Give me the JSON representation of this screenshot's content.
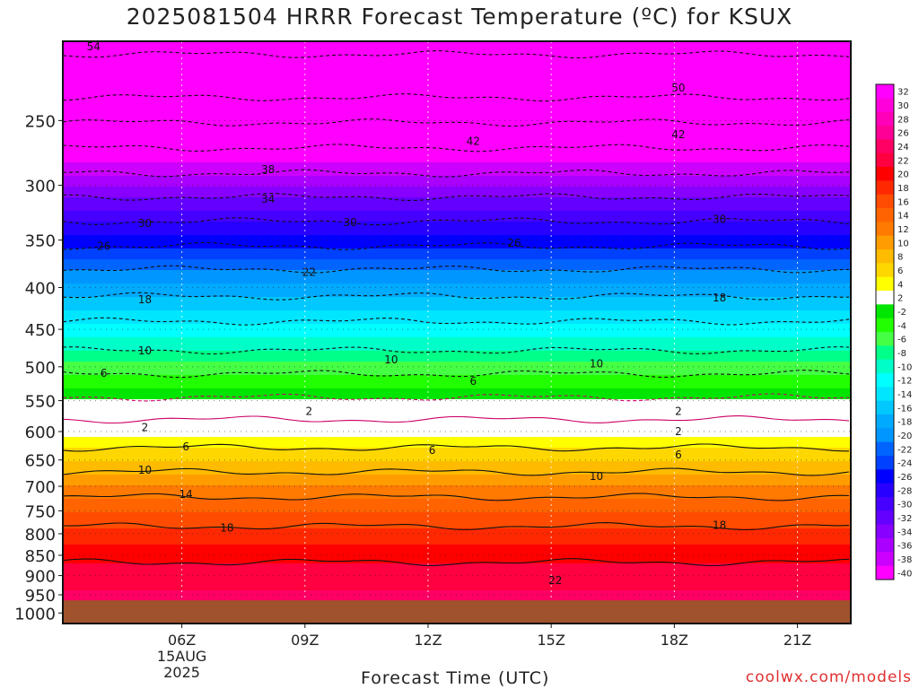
{
  "title": "2025081504 HRRR Forecast Temperature (ºC) for KSUX",
  "credit": "coolwx.com/models",
  "chart_data": {
    "type": "heatmap",
    "title": "2025081504 HRRR Forecast Temperature (ºC) for KSUX",
    "xlabel": "Forecast Time (UTC)",
    "ylabel": "",
    "x_ticks": [
      "06Z",
      "09Z",
      "12Z",
      "15Z",
      "18Z",
      "21Z"
    ],
    "x_tick_date": [
      "15AUG",
      "2025"
    ],
    "x_tick_hours": [
      6,
      9,
      12,
      15,
      18,
      21
    ],
    "xlim": [
      3.1,
      22.3
    ],
    "y_ticks": [
      250,
      300,
      350,
      400,
      450,
      500,
      550,
      600,
      650,
      700,
      750,
      800,
      850,
      900,
      950,
      1000
    ],
    "ylim": [
      1030,
      200
    ],
    "y_scale": "log",
    "colorbar": {
      "labels": [
        "32",
        "30",
        "28",
        "26",
        "24",
        "22",
        "20",
        "18",
        "16",
        "14",
        "12",
        "10",
        "8",
        "6",
        "4",
        "2",
        "-2",
        "-4",
        "-6",
        "-8",
        "-10",
        "-12",
        "-14",
        "-16",
        "-18",
        "-20",
        "-22",
        "-24",
        "-26",
        "-28",
        "-30",
        "-32",
        "-34",
        "-36",
        "-38",
        "-40"
      ],
      "colors": [
        "#ff00ff",
        "#ff00dd",
        "#ff00b9",
        "#ff0097",
        "#ff0064",
        "#ff0040",
        "#ff0000",
        "#ff2800",
        "#ff4c00",
        "#ff6400",
        "#ff7a00",
        "#ff9c00",
        "#ffbb00",
        "#ffd700",
        "#ffff00",
        "#ffffff",
        "#00e600",
        "#22ff00",
        "#44ff44",
        "#00ff88",
        "#00ffc8",
        "#00ffff",
        "#00e6ff",
        "#00c8ff",
        "#00aaff",
        "#0096ff",
        "#0064ff",
        "#0040ff",
        "#0000ff",
        "#2800ff",
        "#4600ff",
        "#6400ff",
        "#8800ff",
        "#aa00ff",
        "#cc00ff",
        "#ff00ff"
      ]
    },
    "ground_pressure_hpa": 965,
    "contour_labels": [
      {
        "text": "54",
        "t": 3.85,
        "p": 203
      },
      {
        "text": "50",
        "t": 18.1,
        "p": 228
      },
      {
        "text": "42",
        "t": 13.1,
        "p": 265
      },
      {
        "text": "42",
        "t": 18.1,
        "p": 260
      },
      {
        "text": "38",
        "t": 8.1,
        "p": 287
      },
      {
        "text": "34",
        "t": 8.1,
        "p": 312
      },
      {
        "text": "30",
        "t": 5.1,
        "p": 334
      },
      {
        "text": "30",
        "t": 10.1,
        "p": 333
      },
      {
        "text": "30",
        "t": 19.1,
        "p": 330
      },
      {
        "text": "26",
        "t": 4.1,
        "p": 356
      },
      {
        "text": "26",
        "t": 14.1,
        "p": 353
      },
      {
        "text": "22",
        "t": 9.1,
        "p": 383
      },
      {
        "text": "18",
        "t": 5.1,
        "p": 414
      },
      {
        "text": "18",
        "t": 19.1,
        "p": 412
      },
      {
        "text": "10",
        "t": 5.1,
        "p": 478
      },
      {
        "text": "10",
        "t": 11.1,
        "p": 490
      },
      {
        "text": "10",
        "t": 16.1,
        "p": 496
      },
      {
        "text": "6",
        "t": 4.1,
        "p": 509
      },
      {
        "text": "6",
        "t": 13.1,
        "p": 521
      },
      {
        "text": "2",
        "t": 9.1,
        "p": 567
      },
      {
        "text": "2",
        "t": 18.1,
        "p": 567
      },
      {
        "text": "2",
        "t": 5.1,
        "p": 593
      },
      {
        "text": "2",
        "t": 18.1,
        "p": 600
      },
      {
        "text": "6",
        "t": 6.1,
        "p": 626
      },
      {
        "text": "6",
        "t": 12.1,
        "p": 633
      },
      {
        "text": "6",
        "t": 18.1,
        "p": 641
      },
      {
        "text": "10",
        "t": 5.1,
        "p": 669
      },
      {
        "text": "10",
        "t": 16.1,
        "p": 681
      },
      {
        "text": "14",
        "t": 6.1,
        "p": 716
      },
      {
        "text": "18",
        "t": 7.1,
        "p": 787
      },
      {
        "text": "18",
        "t": 19.1,
        "p": 781
      },
      {
        "text": "22",
        "t": 15.1,
        "p": 912
      }
    ]
  }
}
